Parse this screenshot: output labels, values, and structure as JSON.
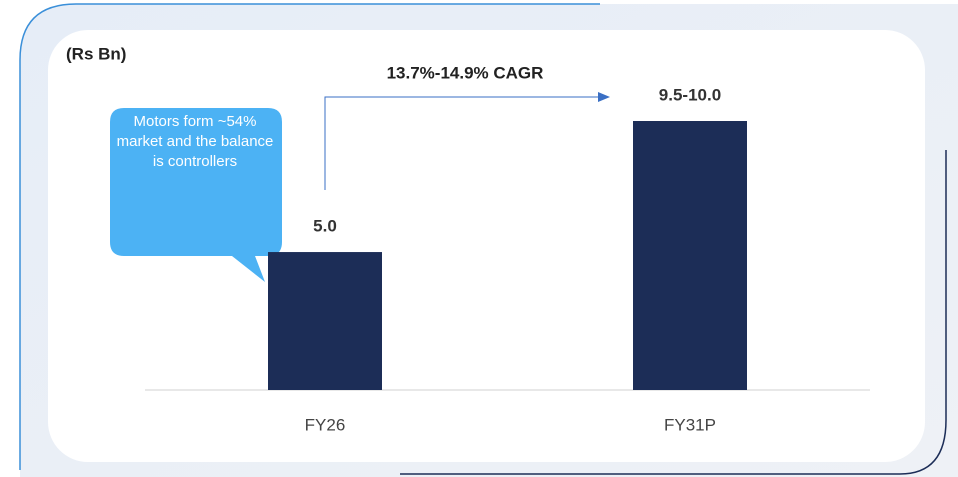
{
  "chart_data": {
    "type": "bar",
    "unit": "(Rs Bn)",
    "annotation": "13.7%-14.9% CAGR",
    "callout": "Motors form ~54% market and the balance is controllers",
    "categories": [
      "FY26",
      "FY31P"
    ],
    "values": [
      5.0,
      9.75
    ],
    "value_labels": [
      "5.0",
      "9.5-10.0"
    ],
    "color": "#1c2d57"
  }
}
